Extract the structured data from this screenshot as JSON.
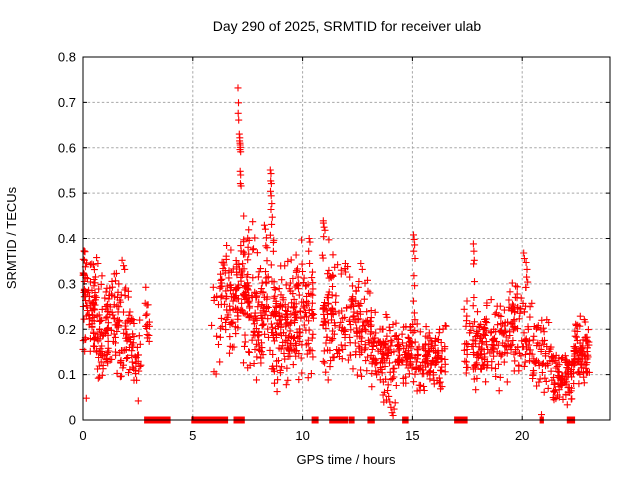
{
  "chart_data": {
    "type": "scatter",
    "title": "Day 290 of 2025, SRMTID for receiver ulab",
    "xlabel": "GPS time / hours",
    "ylabel": "SRMTID / TECUs",
    "xlim": [
      0,
      24
    ],
    "ylim": [
      0,
      0.8
    ],
    "xticks": [
      0,
      5,
      10,
      15,
      20
    ],
    "xtick_labels": [
      "0",
      "5",
      "10",
      "15",
      "20"
    ],
    "yticks": [
      0,
      0.1,
      0.2,
      0.3,
      0.4,
      0.5,
      0.6,
      0.7,
      0.8
    ],
    "ytick_labels": [
      "0",
      "0.1",
      "0.2",
      "0.3",
      "0.4",
      "0.5",
      "0.6",
      "0.7",
      "0.8"
    ],
    "grid": "dashed-major",
    "legend": "none",
    "marker": "plus",
    "marker_color": "#ff0000",
    "grid_color": "#a8a8a8",
    "border_color": "#000000",
    "seed": 7,
    "explicit_points": [
      [
        0.15,
        0.048
      ],
      [
        2.52,
        0.042
      ],
      [
        20.88,
        0.012
      ],
      [
        0.62,
        0.358
      ],
      [
        0.68,
        0.345
      ],
      [
        1.78,
        0.352
      ],
      [
        1.85,
        0.34
      ],
      [
        1.9,
        0.332
      ],
      [
        7.06,
        0.732
      ],
      [
        7.08,
        0.699
      ],
      [
        7.07,
        0.676
      ],
      [
        7.09,
        0.661
      ],
      [
        7.12,
        0.63
      ],
      [
        7.14,
        0.622
      ],
      [
        7.13,
        0.615
      ],
      [
        7.15,
        0.61
      ],
      [
        7.16,
        0.606
      ],
      [
        7.17,
        0.601
      ],
      [
        7.15,
        0.596
      ],
      [
        7.18,
        0.591
      ],
      [
        7.16,
        0.548
      ],
      [
        7.18,
        0.54
      ],
      [
        7.17,
        0.521
      ],
      [
        7.2,
        0.516
      ],
      [
        8.53,
        0.551
      ],
      [
        8.56,
        0.543
      ],
      [
        8.55,
        0.527
      ],
      [
        8.58,
        0.521
      ],
      [
        8.54,
        0.504
      ],
      [
        8.57,
        0.494
      ],
      [
        8.6,
        0.477
      ],
      [
        8.56,
        0.464
      ],
      [
        8.62,
        0.447
      ],
      [
        8.59,
        0.431
      ],
      [
        10.3,
        0.4
      ],
      [
        10.34,
        0.392
      ],
      [
        10.28,
        0.372
      ],
      [
        10.32,
        0.345
      ],
      [
        10.95,
        0.434
      ],
      [
        10.98,
        0.425
      ],
      [
        11.02,
        0.418
      ],
      [
        11.95,
        0.345
      ],
      [
        12.05,
        0.338
      ],
      [
        12.65,
        0.345
      ],
      [
        12.72,
        0.332
      ],
      [
        13.87,
        0.065
      ],
      [
        13.92,
        0.052
      ],
      [
        13.97,
        0.04
      ],
      [
        14.02,
        0.028
      ],
      [
        14.07,
        0.016
      ],
      [
        14.12,
        0.01
      ],
      [
        14.17,
        0.024
      ],
      [
        14.22,
        0.038
      ],
      [
        15.05,
        0.408
      ],
      [
        15.08,
        0.398
      ],
      [
        15.1,
        0.386
      ],
      [
        15.06,
        0.372
      ],
      [
        15.12,
        0.356
      ],
      [
        15.07,
        0.318
      ],
      [
        15.1,
        0.296
      ],
      [
        15.05,
        0.262
      ],
      [
        15.09,
        0.236
      ],
      [
        17.78,
        0.388
      ],
      [
        17.8,
        0.372
      ],
      [
        17.82,
        0.352
      ],
      [
        17.79,
        0.344
      ],
      [
        17.83,
        0.305
      ],
      [
        17.8,
        0.27
      ],
      [
        17.77,
        0.252
      ],
      [
        19.55,
        0.302
      ],
      [
        19.7,
        0.295
      ],
      [
        20.07,
        0.368
      ],
      [
        20.1,
        0.356
      ],
      [
        20.18,
        0.347
      ],
      [
        20.22,
        0.332
      ],
      [
        20.2,
        0.315
      ],
      [
        20.25,
        0.304
      ],
      [
        20.16,
        0.292
      ]
    ],
    "clusters": [
      {
        "t0": 0.0,
        "t1": 0.12,
        "n": 20,
        "ymin": 0.15,
        "ymax": 0.385,
        "dist": "uni"
      },
      {
        "t0": 0.05,
        "t1": 0.55,
        "n": 55,
        "ymin": 0.13,
        "ymax": 0.38,
        "dist": "tri"
      },
      {
        "t0": 0.5,
        "t1": 1.15,
        "n": 65,
        "ymin": 0.05,
        "ymax": 0.33,
        "dist": "tri"
      },
      {
        "t0": 1.1,
        "t1": 1.65,
        "n": 55,
        "ymin": 0.08,
        "ymax": 0.35,
        "dist": "tri"
      },
      {
        "t0": 1.65,
        "t1": 2.25,
        "n": 50,
        "ymin": 0.07,
        "ymax": 0.32,
        "dist": "tri"
      },
      {
        "t0": 2.25,
        "t1": 2.65,
        "n": 26,
        "ymin": 0.06,
        "ymax": 0.25,
        "dist": "tri"
      },
      {
        "t0": 2.82,
        "t1": 3.05,
        "n": 16,
        "ymin": 0.13,
        "ymax": 0.31,
        "dist": "uni"
      },
      {
        "t0": 5.8,
        "t1": 6.25,
        "n": 12,
        "ymin": 0.09,
        "ymax": 0.31,
        "dist": "uni"
      },
      {
        "t0": 6.25,
        "t1": 6.65,
        "n": 35,
        "ymin": 0.17,
        "ymax": 0.42,
        "dist": "tri"
      },
      {
        "t0": 6.65,
        "t1": 7.1,
        "n": 50,
        "ymin": 0.1,
        "ymax": 0.4,
        "dist": "tri"
      },
      {
        "t0": 7.1,
        "t1": 7.32,
        "n": 18,
        "ymin": 0.22,
        "ymax": 0.47,
        "dist": "uni"
      },
      {
        "t0": 7.3,
        "t1": 8.45,
        "n": 140,
        "ymin": 0.07,
        "ymax": 0.44,
        "dist": "tri"
      },
      {
        "t0": 8.5,
        "t1": 8.72,
        "n": 22,
        "ymin": 0.1,
        "ymax": 0.42,
        "dist": "uni"
      },
      {
        "t0": 8.7,
        "t1": 9.7,
        "n": 120,
        "ymin": 0.05,
        "ymax": 0.37,
        "dist": "tri"
      },
      {
        "t0": 9.7,
        "t1": 10.5,
        "n": 80,
        "ymin": 0.05,
        "ymax": 0.4,
        "dist": "tri"
      },
      {
        "t0": 10.9,
        "t1": 11.4,
        "n": 65,
        "ymin": 0.06,
        "ymax": 0.44,
        "dist": "tri"
      },
      {
        "t0": 11.4,
        "t1": 12.35,
        "n": 60,
        "ymin": 0.08,
        "ymax": 0.35,
        "dist": "tri"
      },
      {
        "t0": 12.4,
        "t1": 13.15,
        "n": 70,
        "ymin": 0.08,
        "ymax": 0.34,
        "dist": "tri"
      },
      {
        "t0": 13.15,
        "t1": 14.45,
        "n": 110,
        "ymin": 0.03,
        "ymax": 0.25,
        "dist": "tri"
      },
      {
        "t0": 14.5,
        "t1": 16.55,
        "n": 170,
        "ymin": 0.05,
        "ymax": 0.23,
        "dist": "tri"
      },
      {
        "t0": 17.35,
        "t1": 19.3,
        "n": 150,
        "ymin": 0.06,
        "ymax": 0.275,
        "dist": "tri"
      },
      {
        "t0": 19.3,
        "t1": 20.45,
        "n": 85,
        "ymin": 0.08,
        "ymax": 0.32,
        "dist": "tri"
      },
      {
        "t0": 20.45,
        "t1": 21.35,
        "n": 55,
        "ymin": 0.05,
        "ymax": 0.24,
        "dist": "tri"
      },
      {
        "t0": 21.35,
        "t1": 22.35,
        "n": 85,
        "ymin": 0.03,
        "ymax": 0.16,
        "dist": "tri"
      },
      {
        "t0": 22.35,
        "t1": 22.9,
        "n": 65,
        "ymin": 0.07,
        "ymax": 0.235,
        "dist": "tri"
      },
      {
        "t0": 22.9,
        "t1": 23.08,
        "n": 18,
        "ymin": 0.1,
        "ymax": 0.2,
        "dist": "uni"
      }
    ],
    "zero_runs": [
      [
        2.85,
        3.52
      ],
      [
        3.56,
        3.62
      ],
      [
        3.68,
        3.72
      ],
      [
        3.78,
        3.84
      ],
      [
        3.88,
        3.92
      ],
      [
        5.0,
        5.42
      ],
      [
        5.52,
        5.58
      ],
      [
        5.64,
        5.68
      ],
      [
        5.78,
        6.54
      ],
      [
        6.92,
        6.98
      ],
      [
        7.06,
        7.12
      ],
      [
        7.22,
        7.3
      ],
      [
        10.48,
        10.66
      ],
      [
        11.28,
        11.4
      ],
      [
        11.46,
        11.56
      ],
      [
        11.6,
        12.02
      ],
      [
        12.18,
        12.3
      ],
      [
        13.02,
        13.22
      ],
      [
        14.6,
        14.64
      ],
      [
        14.72,
        14.76
      ],
      [
        16.97,
        17.45
      ],
      [
        20.86,
        20.92
      ],
      [
        22.1,
        22.34
      ]
    ]
  }
}
